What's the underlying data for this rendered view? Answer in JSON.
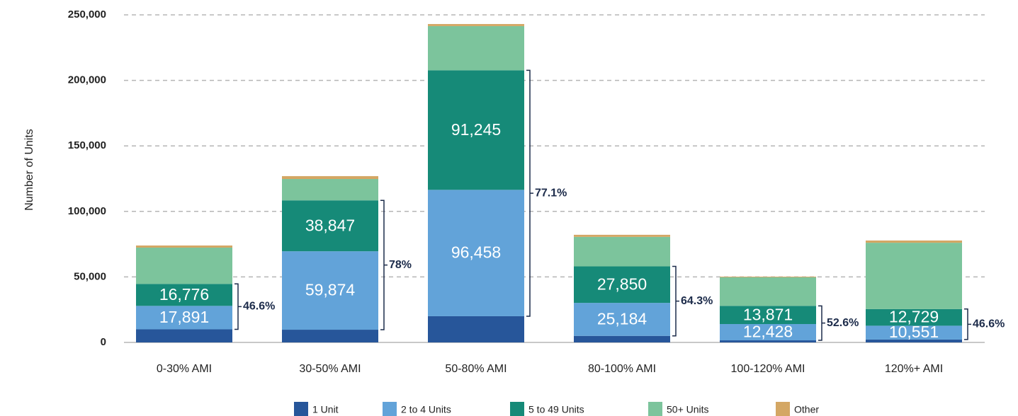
{
  "chart_data": {
    "type": "stacked_bar",
    "ylabel": "Number of Units",
    "categories": [
      "0-30% AMI",
      "30-50% AMI",
      "50-80% AMI",
      "80-100% AMI",
      "100-120% AMI",
      "120%+ AMI"
    ],
    "series": [
      {
        "name": "1 Unit",
        "color": "#27569a",
        "values": [
          10000,
          9700,
          20000,
          5000,
          1600,
          2200
        ]
      },
      {
        "name": "2 to 4 Units",
        "color": "#62a3d9",
        "values": [
          17891,
          59874,
          96458,
          25184,
          12428,
          10551
        ],
        "value_labels": [
          "17,891",
          "59,874",
          "96,458",
          "25,184",
          "12,428",
          "10,551"
        ]
      },
      {
        "name": "5 to 49 Units",
        "color": "#168a78",
        "values": [
          16776,
          38847,
          91245,
          27850,
          13871,
          12729
        ],
        "value_labels": [
          "16,776",
          "38,847",
          "91,245",
          "27,850",
          "13,871",
          "12,729"
        ]
      },
      {
        "name": "50+ Units",
        "color": "#7cc49c",
        "values": [
          27700,
          16300,
          33700,
          22500,
          21800,
          50600
        ]
      },
      {
        "name": "Other",
        "color": "#d4a764",
        "values": [
          1600,
          2200,
          1600,
          1600,
          500,
          1700
        ]
      }
    ],
    "annotations": [
      "46.6%",
      "78%",
      "77.1%",
      "64.3%",
      "52.6%",
      "46.6%"
    ],
    "ylim": [
      0,
      250000
    ],
    "yticks": [
      0,
      {
        "value": 50000,
        "label": "50,000"
      },
      {
        "value": 100000,
        "label": "100,000"
      },
      {
        "value": 150000,
        "label": "150,000"
      },
      {
        "value": 200000,
        "label": "200,000"
      },
      {
        "value": 250000,
        "label": "250,000"
      }
    ],
    "grid": true,
    "legend": "bottom"
  }
}
